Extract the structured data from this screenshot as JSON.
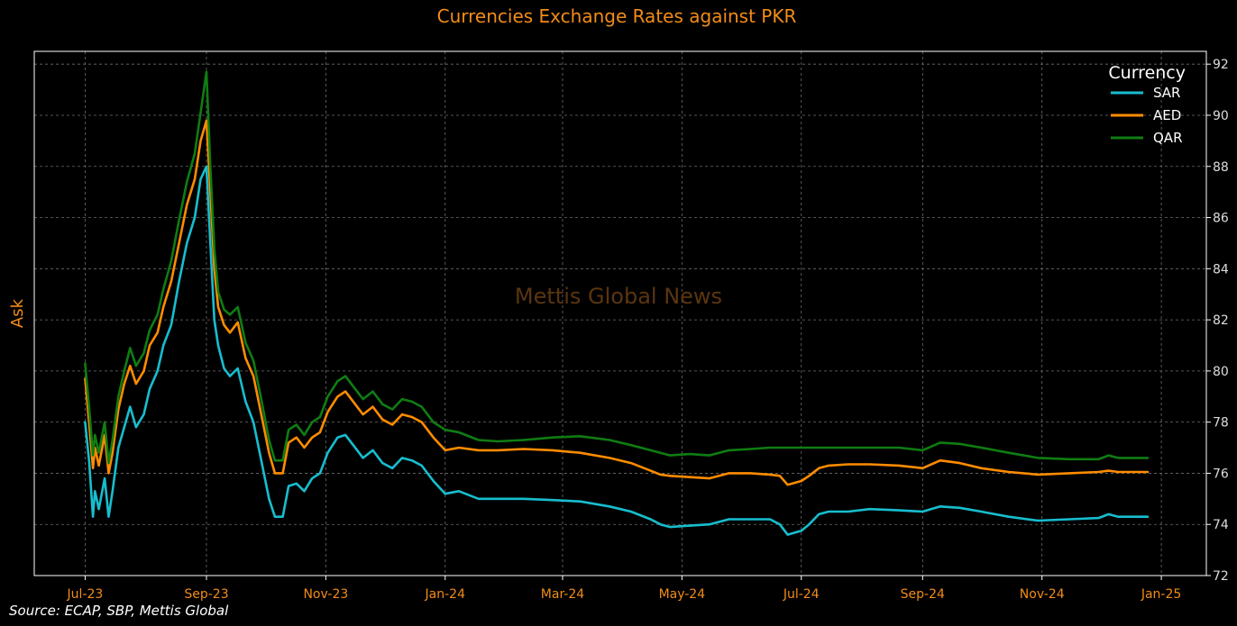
{
  "chart_data": {
    "type": "line",
    "title": "Currencies Exchange Rates against PKR",
    "ylabel": "Ask",
    "xlabel": "",
    "watermark": "Mettis Global News",
    "source": "Source: ECAP, SBP, Mettis Global",
    "legend": {
      "title": "Currency",
      "placement": "top-right"
    },
    "grid": true,
    "y_axis_side": "right",
    "xlim": [
      "2023-06-05",
      "2025-01-24"
    ],
    "ylim": [
      72,
      92.5
    ],
    "x_ticks": [
      {
        "date": "2023-07-01",
        "label": "Jul-23"
      },
      {
        "date": "2023-09-01",
        "label": "Sep-23"
      },
      {
        "date": "2023-11-01",
        "label": "Nov-23"
      },
      {
        "date": "2024-01-01",
        "label": "Jan-24"
      },
      {
        "date": "2024-03-01",
        "label": "Mar-24"
      },
      {
        "date": "2024-05-01",
        "label": "May-24"
      },
      {
        "date": "2024-07-01",
        "label": "Jul-24"
      },
      {
        "date": "2024-09-01",
        "label": "Sep-24"
      },
      {
        "date": "2024-11-01",
        "label": "Nov-24"
      },
      {
        "date": "2025-01-01",
        "label": "Jan-25"
      }
    ],
    "y_ticks": [
      72,
      74,
      76,
      78,
      80,
      82,
      84,
      86,
      88,
      90,
      92
    ],
    "series": [
      {
        "name": "SAR",
        "color": "#17becf",
        "points": [
          [
            "2023-07-01",
            78.0
          ],
          [
            "2023-07-03",
            76.5
          ],
          [
            "2023-07-05",
            74.3
          ],
          [
            "2023-07-06",
            75.3
          ],
          [
            "2023-07-08",
            74.6
          ],
          [
            "2023-07-11",
            75.8
          ],
          [
            "2023-07-13",
            74.3
          ],
          [
            "2023-07-15",
            75.3
          ],
          [
            "2023-07-18",
            77.0
          ],
          [
            "2023-07-21",
            77.8
          ],
          [
            "2023-07-24",
            78.6
          ],
          [
            "2023-07-27",
            77.8
          ],
          [
            "2023-07-31",
            78.3
          ],
          [
            "2023-08-03",
            79.3
          ],
          [
            "2023-08-07",
            80.0
          ],
          [
            "2023-08-10",
            81.0
          ],
          [
            "2023-08-14",
            81.8
          ],
          [
            "2023-08-18",
            83.5
          ],
          [
            "2023-08-22",
            85.0
          ],
          [
            "2023-08-26",
            86.0
          ],
          [
            "2023-08-29",
            87.5
          ],
          [
            "2023-09-01",
            88.0
          ],
          [
            "2023-09-03",
            85.0
          ],
          [
            "2023-09-05",
            82.0
          ],
          [
            "2023-09-07",
            81.0
          ],
          [
            "2023-09-10",
            80.1
          ],
          [
            "2023-09-13",
            79.8
          ],
          [
            "2023-09-17",
            80.1
          ],
          [
            "2023-09-21",
            78.8
          ],
          [
            "2023-09-25",
            78.0
          ],
          [
            "2023-09-29",
            76.5
          ],
          [
            "2023-10-03",
            75.0
          ],
          [
            "2023-10-06",
            74.3
          ],
          [
            "2023-10-10",
            74.3
          ],
          [
            "2023-10-13",
            75.5
          ],
          [
            "2023-10-17",
            75.6
          ],
          [
            "2023-10-21",
            75.3
          ],
          [
            "2023-10-25",
            75.8
          ],
          [
            "2023-10-29",
            76.0
          ],
          [
            "2023-11-02",
            76.8
          ],
          [
            "2023-11-07",
            77.4
          ],
          [
            "2023-11-11",
            77.5
          ],
          [
            "2023-11-15",
            77.1
          ],
          [
            "2023-11-20",
            76.6
          ],
          [
            "2023-11-25",
            76.9
          ],
          [
            "2023-11-30",
            76.4
          ],
          [
            "2023-12-05",
            76.2
          ],
          [
            "2023-12-10",
            76.6
          ],
          [
            "2023-12-15",
            76.5
          ],
          [
            "2023-12-20",
            76.3
          ],
          [
            "2023-12-26",
            75.7
          ],
          [
            "2024-01-01",
            75.2
          ],
          [
            "2024-01-08",
            75.3
          ],
          [
            "2024-01-18",
            75.0
          ],
          [
            "2024-01-28",
            75.0
          ],
          [
            "2024-02-10",
            75.0
          ],
          [
            "2024-02-25",
            74.95
          ],
          [
            "2024-03-10",
            74.9
          ],
          [
            "2024-03-25",
            74.7
          ],
          [
            "2024-04-05",
            74.5
          ],
          [
            "2024-04-15",
            74.2
          ],
          [
            "2024-04-20",
            74.0
          ],
          [
            "2024-04-25",
            73.9
          ],
          [
            "2024-05-05",
            73.95
          ],
          [
            "2024-05-15",
            74.0
          ],
          [
            "2024-05-20",
            74.1
          ],
          [
            "2024-05-25",
            74.2
          ],
          [
            "2024-06-05",
            74.2
          ],
          [
            "2024-06-15",
            74.2
          ],
          [
            "2024-06-20",
            74.0
          ],
          [
            "2024-06-24",
            73.6
          ],
          [
            "2024-07-01",
            73.75
          ],
          [
            "2024-07-05",
            74.0
          ],
          [
            "2024-07-10",
            74.4
          ],
          [
            "2024-07-15",
            74.5
          ],
          [
            "2024-07-25",
            74.5
          ],
          [
            "2024-08-05",
            74.6
          ],
          [
            "2024-08-20",
            74.55
          ],
          [
            "2024-09-01",
            74.5
          ],
          [
            "2024-09-10",
            74.7
          ],
          [
            "2024-09-20",
            74.65
          ],
          [
            "2024-10-01",
            74.5
          ],
          [
            "2024-10-15",
            74.3
          ],
          [
            "2024-10-30",
            74.15
          ],
          [
            "2024-11-15",
            74.2
          ],
          [
            "2024-11-30",
            74.25
          ],
          [
            "2024-12-05",
            74.4
          ],
          [
            "2024-12-10",
            74.3
          ],
          [
            "2024-12-25",
            74.3
          ]
        ]
      },
      {
        "name": "AED",
        "color": "#ff8c00",
        "points": [
          [
            "2023-07-01",
            79.7
          ],
          [
            "2023-07-03",
            78.0
          ],
          [
            "2023-07-05",
            76.2
          ],
          [
            "2023-07-06",
            77.0
          ],
          [
            "2023-07-08",
            76.3
          ],
          [
            "2023-07-11",
            77.5
          ],
          [
            "2023-07-13",
            76.0
          ],
          [
            "2023-07-15",
            76.8
          ],
          [
            "2023-07-18",
            78.5
          ],
          [
            "2023-07-21",
            79.5
          ],
          [
            "2023-07-24",
            80.2
          ],
          [
            "2023-07-27",
            79.5
          ],
          [
            "2023-07-31",
            80.0
          ],
          [
            "2023-08-03",
            81.0
          ],
          [
            "2023-08-07",
            81.5
          ],
          [
            "2023-08-10",
            82.5
          ],
          [
            "2023-08-14",
            83.5
          ],
          [
            "2023-08-18",
            85.0
          ],
          [
            "2023-08-22",
            86.5
          ],
          [
            "2023-08-26",
            87.5
          ],
          [
            "2023-08-29",
            89.0
          ],
          [
            "2023-09-01",
            89.8
          ],
          [
            "2023-09-03",
            87.0
          ],
          [
            "2023-09-05",
            84.0
          ],
          [
            "2023-09-07",
            82.5
          ],
          [
            "2023-09-10",
            81.8
          ],
          [
            "2023-09-13",
            81.5
          ],
          [
            "2023-09-17",
            81.9
          ],
          [
            "2023-09-21",
            80.5
          ],
          [
            "2023-09-25",
            79.8
          ],
          [
            "2023-09-29",
            78.3
          ],
          [
            "2023-10-03",
            76.8
          ],
          [
            "2023-10-06",
            76.0
          ],
          [
            "2023-10-10",
            76.0
          ],
          [
            "2023-10-13",
            77.2
          ],
          [
            "2023-10-17",
            77.4
          ],
          [
            "2023-10-21",
            77.0
          ],
          [
            "2023-10-25",
            77.4
          ],
          [
            "2023-10-29",
            77.6
          ],
          [
            "2023-11-02",
            78.4
          ],
          [
            "2023-11-07",
            79.0
          ],
          [
            "2023-11-11",
            79.2
          ],
          [
            "2023-11-15",
            78.8
          ],
          [
            "2023-11-20",
            78.3
          ],
          [
            "2023-11-25",
            78.6
          ],
          [
            "2023-11-30",
            78.1
          ],
          [
            "2023-12-05",
            77.9
          ],
          [
            "2023-12-10",
            78.3
          ],
          [
            "2023-12-15",
            78.2
          ],
          [
            "2023-12-20",
            78.0
          ],
          [
            "2023-12-26",
            77.4
          ],
          [
            "2024-01-01",
            76.9
          ],
          [
            "2024-01-08",
            77.0
          ],
          [
            "2024-01-18",
            76.9
          ],
          [
            "2024-01-28",
            76.9
          ],
          [
            "2024-02-10",
            76.95
          ],
          [
            "2024-02-25",
            76.9
          ],
          [
            "2024-03-10",
            76.8
          ],
          [
            "2024-03-25",
            76.6
          ],
          [
            "2024-04-05",
            76.4
          ],
          [
            "2024-04-15",
            76.1
          ],
          [
            "2024-04-20",
            75.95
          ],
          [
            "2024-04-25",
            75.9
          ],
          [
            "2024-05-05",
            75.85
          ],
          [
            "2024-05-15",
            75.8
          ],
          [
            "2024-05-20",
            75.9
          ],
          [
            "2024-05-25",
            76.0
          ],
          [
            "2024-06-05",
            76.0
          ],
          [
            "2024-06-15",
            75.95
          ],
          [
            "2024-06-20",
            75.9
          ],
          [
            "2024-06-24",
            75.55
          ],
          [
            "2024-07-01",
            75.7
          ],
          [
            "2024-07-05",
            75.9
          ],
          [
            "2024-07-10",
            76.2
          ],
          [
            "2024-07-15",
            76.3
          ],
          [
            "2024-07-25",
            76.35
          ],
          [
            "2024-08-05",
            76.35
          ],
          [
            "2024-08-20",
            76.3
          ],
          [
            "2024-09-01",
            76.2
          ],
          [
            "2024-09-10",
            76.5
          ],
          [
            "2024-09-20",
            76.4
          ],
          [
            "2024-10-01",
            76.2
          ],
          [
            "2024-10-15",
            76.05
          ],
          [
            "2024-10-30",
            75.95
          ],
          [
            "2024-11-15",
            76.0
          ],
          [
            "2024-11-30",
            76.05
          ],
          [
            "2024-12-05",
            76.1
          ],
          [
            "2024-12-10",
            76.05
          ],
          [
            "2024-12-25",
            76.05
          ]
        ]
      },
      {
        "name": "QAR",
        "color": "#0f7d12",
        "points": [
          [
            "2023-07-01",
            80.3
          ],
          [
            "2023-07-03",
            78.6
          ],
          [
            "2023-07-05",
            76.7
          ],
          [
            "2023-07-06",
            77.5
          ],
          [
            "2023-07-08",
            76.8
          ],
          [
            "2023-07-11",
            78.0
          ],
          [
            "2023-07-13",
            76.4
          ],
          [
            "2023-07-15",
            77.3
          ],
          [
            "2023-07-18",
            79.0
          ],
          [
            "2023-07-21",
            80.0
          ],
          [
            "2023-07-24",
            80.9
          ],
          [
            "2023-07-27",
            80.2
          ],
          [
            "2023-07-31",
            80.7
          ],
          [
            "2023-08-03",
            81.6
          ],
          [
            "2023-08-07",
            82.2
          ],
          [
            "2023-08-10",
            83.2
          ],
          [
            "2023-08-14",
            84.3
          ],
          [
            "2023-08-18",
            85.9
          ],
          [
            "2023-08-22",
            87.4
          ],
          [
            "2023-08-26",
            88.5
          ],
          [
            "2023-08-29",
            90.1
          ],
          [
            "2023-09-01",
            91.7
          ],
          [
            "2023-09-03",
            88.0
          ],
          [
            "2023-09-05",
            84.8
          ],
          [
            "2023-09-07",
            83.1
          ],
          [
            "2023-09-10",
            82.4
          ],
          [
            "2023-09-13",
            82.2
          ],
          [
            "2023-09-17",
            82.5
          ],
          [
            "2023-09-21",
            81.1
          ],
          [
            "2023-09-25",
            80.4
          ],
          [
            "2023-09-29",
            78.9
          ],
          [
            "2023-10-03",
            77.3
          ],
          [
            "2023-10-06",
            76.5
          ],
          [
            "2023-10-10",
            76.5
          ],
          [
            "2023-10-13",
            77.7
          ],
          [
            "2023-10-17",
            77.9
          ],
          [
            "2023-10-21",
            77.5
          ],
          [
            "2023-10-25",
            78.0
          ],
          [
            "2023-10-29",
            78.2
          ],
          [
            "2023-11-02",
            79.0
          ],
          [
            "2023-11-07",
            79.6
          ],
          [
            "2023-11-11",
            79.8
          ],
          [
            "2023-11-15",
            79.4
          ],
          [
            "2023-11-20",
            78.9
          ],
          [
            "2023-11-25",
            79.2
          ],
          [
            "2023-11-30",
            78.7
          ],
          [
            "2023-12-05",
            78.5
          ],
          [
            "2023-12-10",
            78.9
          ],
          [
            "2023-12-15",
            78.8
          ],
          [
            "2023-12-20",
            78.6
          ],
          [
            "2023-12-26",
            78.0
          ],
          [
            "2024-01-01",
            77.7
          ],
          [
            "2024-01-08",
            77.6
          ],
          [
            "2024-01-18",
            77.3
          ],
          [
            "2024-01-28",
            77.25
          ],
          [
            "2024-02-10",
            77.3
          ],
          [
            "2024-02-25",
            77.4
          ],
          [
            "2024-03-10",
            77.45
          ],
          [
            "2024-03-25",
            77.3
          ],
          [
            "2024-04-05",
            77.1
          ],
          [
            "2024-04-15",
            76.9
          ],
          [
            "2024-04-20",
            76.8
          ],
          [
            "2024-04-25",
            76.7
          ],
          [
            "2024-05-05",
            76.75
          ],
          [
            "2024-05-15",
            76.7
          ],
          [
            "2024-05-20",
            76.8
          ],
          [
            "2024-05-25",
            76.9
          ],
          [
            "2024-06-05",
            76.95
          ],
          [
            "2024-06-15",
            77.0
          ],
          [
            "2024-06-20",
            77.0
          ],
          [
            "2024-06-24",
            77.0
          ],
          [
            "2024-07-01",
            77.0
          ],
          [
            "2024-07-05",
            77.0
          ],
          [
            "2024-07-10",
            77.0
          ],
          [
            "2024-07-15",
            77.0
          ],
          [
            "2024-07-25",
            77.0
          ],
          [
            "2024-08-05",
            77.0
          ],
          [
            "2024-08-20",
            77.0
          ],
          [
            "2024-09-01",
            76.9
          ],
          [
            "2024-09-10",
            77.2
          ],
          [
            "2024-09-20",
            77.15
          ],
          [
            "2024-10-01",
            77.0
          ],
          [
            "2024-10-15",
            76.8
          ],
          [
            "2024-10-30",
            76.6
          ],
          [
            "2024-11-15",
            76.55
          ],
          [
            "2024-11-30",
            76.55
          ],
          [
            "2024-12-05",
            76.7
          ],
          [
            "2024-12-10",
            76.6
          ],
          [
            "2024-12-25",
            76.6
          ]
        ]
      }
    ]
  }
}
